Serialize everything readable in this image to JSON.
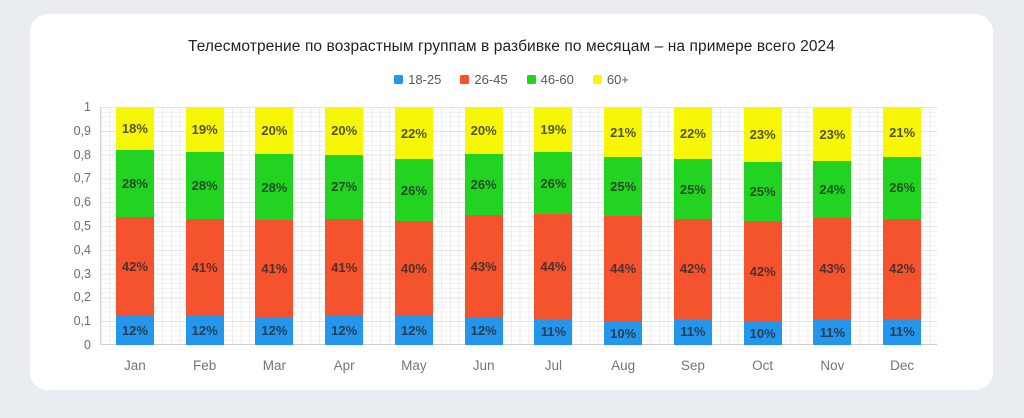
{
  "page": {
    "background": "#E9EDF1",
    "card_background": "#FFFFFF"
  },
  "text_colors": {
    "title": "#1f2125",
    "legend_label": "#55585c",
    "axis_label": "#686b70",
    "month_label": "#737579",
    "segment_label": "rgba(35,38,42,0.78)"
  },
  "chart_data": {
    "type": "bar",
    "stacked": true,
    "title": "Телесмотрение по возрастным группам в разбивке по месяцам – на примере всего 2024",
    "categories": [
      "Jan",
      "Feb",
      "Mar",
      "Apr",
      "May",
      "Jun",
      "Jul",
      "Aug",
      "Sep",
      "Oct",
      "Nov",
      "Dec"
    ],
    "series": [
      {
        "name": "18-25",
        "color": "#2496EC",
        "values": [
          12,
          12,
          12,
          12,
          12,
          12,
          11,
          10,
          11,
          10,
          11,
          11
        ]
      },
      {
        "name": "26-45",
        "color": "#F4532D",
        "values": [
          42,
          41,
          41,
          41,
          40,
          43,
          44,
          44,
          42,
          42,
          43,
          42
        ]
      },
      {
        "name": "46-60",
        "color": "#22D322",
        "values": [
          28,
          28,
          28,
          27,
          26,
          26,
          26,
          25,
          25,
          25,
          24,
          26
        ]
      },
      {
        "name": "60+",
        "color": "#F6F606",
        "values": [
          18,
          19,
          20,
          20,
          22,
          20,
          19,
          21,
          22,
          23,
          23,
          21
        ]
      }
    ],
    "value_suffix": "%",
    "yticks": [
      "1",
      "0,9",
      "0,8",
      "0,7",
      "0,6",
      "0,5",
      "0,4",
      "0,3",
      "0,2",
      "0,1",
      "0"
    ],
    "ylim": [
      0,
      1
    ],
    "grid": true,
    "legend_position": "top"
  }
}
